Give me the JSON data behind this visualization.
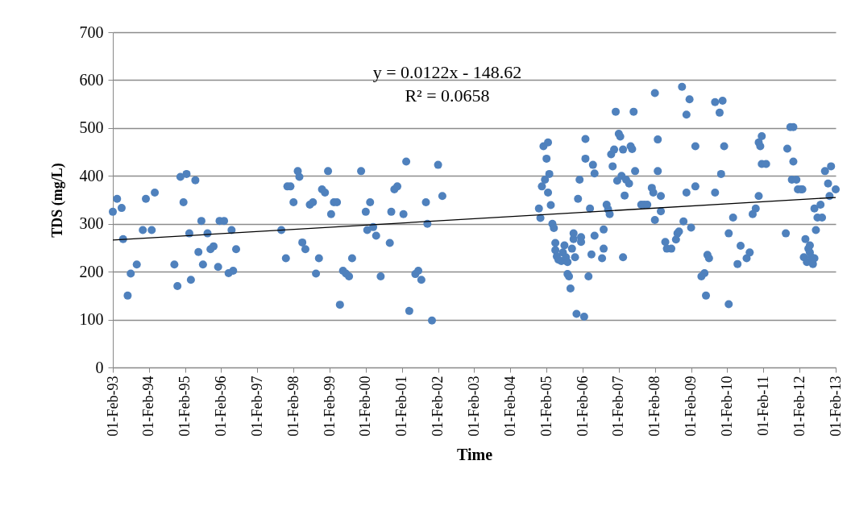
{
  "chart_data": {
    "type": "scatter",
    "xlabel": "Time",
    "ylabel": "TDS (mg/L)",
    "annotations": [
      "y = 0.0122x - 148.62",
      "R² = 0.0658"
    ],
    "xlim": [
      "1993-02-01",
      "2013-02-01"
    ],
    "ylim": [
      0,
      700
    ],
    "yticks": [
      0,
      100,
      200,
      300,
      400,
      500,
      600,
      700
    ],
    "xticks": [
      {
        "value": "1993-02-01",
        "label": "01-Feb-93"
      },
      {
        "value": "1994-02-01",
        "label": "01-Feb-94"
      },
      {
        "value": "1995-02-01",
        "label": "01-Feb-95"
      },
      {
        "value": "1996-02-01",
        "label": "01-Feb-96"
      },
      {
        "value": "1997-02-01",
        "label": "01-Feb-97"
      },
      {
        "value": "1998-02-01",
        "label": "01-Feb-98"
      },
      {
        "value": "1999-02-01",
        "label": "01-Feb-99"
      },
      {
        "value": "2000-02-01",
        "label": "01-Feb-00"
      },
      {
        "value": "2001-02-01",
        "label": "01-Feb-01"
      },
      {
        "value": "2002-02-01",
        "label": "01-Feb-02"
      },
      {
        "value": "2003-02-01",
        "label": "01-Feb-03"
      },
      {
        "value": "2004-02-01",
        "label": "01-Feb-04"
      },
      {
        "value": "2005-02-01",
        "label": "01-Feb-05"
      },
      {
        "value": "2006-02-01",
        "label": "01-Feb-06"
      },
      {
        "value": "2007-02-01",
        "label": "01-Feb-07"
      },
      {
        "value": "2008-02-01",
        "label": "01-Feb-08"
      },
      {
        "value": "2009-02-01",
        "label": "01-Feb-09"
      },
      {
        "value": "2010-02-01",
        "label": "01-Feb-10"
      },
      {
        "value": "2011-02-01",
        "label": "01-Feb-11"
      },
      {
        "value": "2012-02-01",
        "label": "01-Feb-12"
      },
      {
        "value": "2013-02-01",
        "label": "01-Feb-13"
      }
    ],
    "grid": "y",
    "marker": "circle",
    "series": [
      {
        "color": "#4f81bd",
        "x": [
          "1993-02-01",
          "1993-03-16",
          "1993-05-01",
          "1993-05-16",
          "1993-07-01",
          "1993-08-01",
          "1993-10-01",
          "1993-12-01",
          "1994-01-01",
          "1994-03-01",
          "1994-04-01",
          "1994-10-16",
          "1994-11-16",
          "1994-12-16",
          "1995-01-16",
          "1995-02-16",
          "1995-03-16",
          "1995-04-01",
          "1995-05-16",
          "1995-06-16",
          "1995-07-16",
          "1995-08-01",
          "1995-09-16",
          "1995-10-16",
          "1995-11-16",
          "1996-01-01",
          "1996-01-16",
          "1996-03-01",
          "1996-04-16",
          "1996-05-16",
          "1996-06-01",
          "1996-07-01",
          "1997-10-01",
          "1997-11-16",
          "1997-12-01",
          "1998-01-01",
          "1998-02-01",
          "1998-03-16",
          "1998-04-01",
          "1998-05-01",
          "1998-06-01",
          "1998-07-16",
          "1998-08-16",
          "1998-09-16",
          "1998-10-16",
          "1998-11-16",
          "1998-12-16",
          "1999-01-16",
          "1999-02-16",
          "1999-03-16",
          "1999-04-16",
          "1999-05-16",
          "1999-06-16",
          "1999-07-16",
          "1999-08-16",
          "1999-09-16",
          "1999-12-16",
          "2000-02-01",
          "2000-02-16",
          "2000-03-16",
          "2000-04-16",
          "2000-05-16",
          "2000-07-01",
          "2000-10-01",
          "2000-10-16",
          "2000-11-16",
          "2000-12-16",
          "2001-02-16",
          "2001-03-16",
          "2001-04-16",
          "2001-06-16",
          "2001-07-16",
          "2001-08-16",
          "2001-10-01",
          "2001-10-16",
          "2001-12-01",
          "2002-02-01",
          "2002-03-16",
          "2004-11-16",
          "2004-12-01",
          "2004-12-16",
          "2005-01-01",
          "2005-01-16",
          "2005-02-01",
          "2005-02-16",
          "2005-02-16",
          "2005-03-01",
          "2005-03-16",
          "2005-04-01",
          "2005-04-16",
          "2005-05-01",
          "2005-05-01",
          "2005-05-16",
          "2005-06-01",
          "2005-07-01",
          "2005-07-16",
          "2005-08-01",
          "2005-08-16",
          "2005-09-01",
          "2005-09-01",
          "2005-09-16",
          "2005-10-01",
          "2005-10-16",
          "2005-11-01",
          "2005-11-01",
          "2005-11-16",
          "2005-12-01",
          "2005-12-16",
          "2006-01-01",
          "2006-01-16",
          "2006-01-16",
          "2006-02-16",
          "2006-03-01",
          "2006-03-01",
          "2006-04-01",
          "2006-04-16",
          "2006-05-01",
          "2006-05-16",
          "2006-06-01",
          "2006-06-01",
          "2006-08-16",
          "2006-09-01",
          "2006-09-01",
          "2006-10-01",
          "2006-10-16",
          "2006-11-01",
          "2006-11-16",
          "2006-12-01",
          "2006-12-16",
          "2007-01-01",
          "2007-01-16",
          "2007-02-01",
          "2007-02-16",
          "2007-03-01",
          "2007-03-16",
          "2007-03-16",
          "2007-04-01",
          "2007-04-16",
          "2007-05-16",
          "2007-06-01",
          "2007-06-16",
          "2007-07-01",
          "2007-07-16",
          "2007-09-16",
          "2007-10-16",
          "2007-11-16",
          "2008-01-01",
          "2008-01-16",
          "2008-02-01",
          "2008-02-01",
          "2008-03-01",
          "2008-03-01",
          "2008-04-01",
          "2008-04-01",
          "2008-05-16",
          "2008-06-01",
          "2008-07-16",
          "2008-09-01",
          "2008-09-16",
          "2008-10-01",
          "2008-11-01",
          "2008-11-16",
          "2008-12-16",
          "2008-12-16",
          "2009-01-16",
          "2009-02-01",
          "2009-03-16",
          "2009-03-16",
          "2009-05-16",
          "2009-06-16",
          "2009-07-01",
          "2009-07-16",
          "2009-08-01",
          "2009-10-01",
          "2009-10-01",
          "2009-11-16",
          "2009-12-01",
          "2009-12-16",
          "2010-01-01",
          "2010-02-16",
          "2010-02-16",
          "2010-04-01",
          "2010-05-16",
          "2010-06-16",
          "2010-08-16",
          "2010-09-16",
          "2010-10-16",
          "2010-11-16",
          "2010-12-16",
          "2010-12-16",
          "2011-01-01",
          "2011-01-16",
          "2011-01-16",
          "2011-03-01",
          "2011-09-16",
          "2011-10-01",
          "2011-11-01",
          "2011-11-16",
          "2011-12-01",
          "2011-12-01",
          "2012-01-01",
          "2012-01-16",
          "2012-02-16",
          "2012-03-01",
          "2012-03-16",
          "2012-04-01",
          "2012-04-16",
          "2012-05-01",
          "2012-05-16",
          "2012-05-16",
          "2012-06-01",
          "2012-06-16",
          "2012-07-01",
          "2012-07-01",
          "2012-07-16",
          "2012-08-01",
          "2012-09-01",
          "2012-09-16",
          "2012-10-16",
          "2012-11-16",
          "2012-12-01",
          "2012-12-16",
          "2013-02-01"
        ],
        "values": [
          325,
          352,
          333,
          268,
          150,
          196,
          215,
          287,
          352,
          287,
          365,
          215,
          170,
          398,
          345,
          404,
          280,
          183,
          391,
          241,
          306,
          215,
          280,
          247,
          253,
          210,
          306,
          306,
          197,
          287,
          202,
          247,
          287,
          228,
          378,
          378,
          345,
          410,
          398,
          261,
          247,
          340,
          345,
          196,
          228,
          372,
          365,
          410,
          320,
          345,
          345,
          131,
          202,
          196,
          190,
          228,
          410,
          325,
          287,
          345,
          293,
          275,
          190,
          260,
          325,
          372,
          378,
          320,
          430,
          118,
          195,
          202,
          183,
          345,
          300,
          98,
          423,
          358,
          332,
          312,
          378,
          462,
          392,
          436,
          470,
          365,
          404,
          339,
          300,
          291,
          260,
          245,
          232,
          225,
          222,
          240,
          255,
          230,
          220,
          195,
          190,
          165,
          248,
          268,
          280,
          230,
          112,
          352,
          392,
          272,
          262,
          106,
          436,
          477,
          190,
          332,
          236,
          423,
          405,
          275,
          228,
          288,
          248,
          340,
          330,
          320,
          445,
          420,
          455,
          534,
          390,
          488,
          482,
          400,
          230,
          455,
          359,
          392,
          384,
          462,
          456,
          534,
          410,
          340,
          340,
          340,
          375,
          365,
          573,
          308,
          476,
          410,
          326,
          358,
          262,
          248,
          248,
          267,
          280,
          284,
          586,
          305,
          528,
          365,
          560,
          292,
          462,
          378,
          190,
          197,
          150,
          235,
          228,
          554,
          365,
          532,
          404,
          557,
          462,
          280,
          132,
          313,
          216,
          254,
          228,
          240,
          320,
          332,
          470,
          358,
          462,
          483,
          425,
          425,
          280,
          457,
          502,
          392,
          502,
          430,
          392,
          372,
          372,
          372,
          230,
          268,
          220,
          248,
          255,
          240,
          230,
          216,
          228,
          332,
          287,
          313,
          340,
          313,
          410,
          384,
          358,
          420,
          372
        ]
      },
      {
        "type": "line",
        "color": "#000000",
        "marker": "none",
        "x": [
          "1993-02-01",
          "2013-02-01"
        ],
        "values": [
          266,
          355
        ]
      }
    ]
  }
}
